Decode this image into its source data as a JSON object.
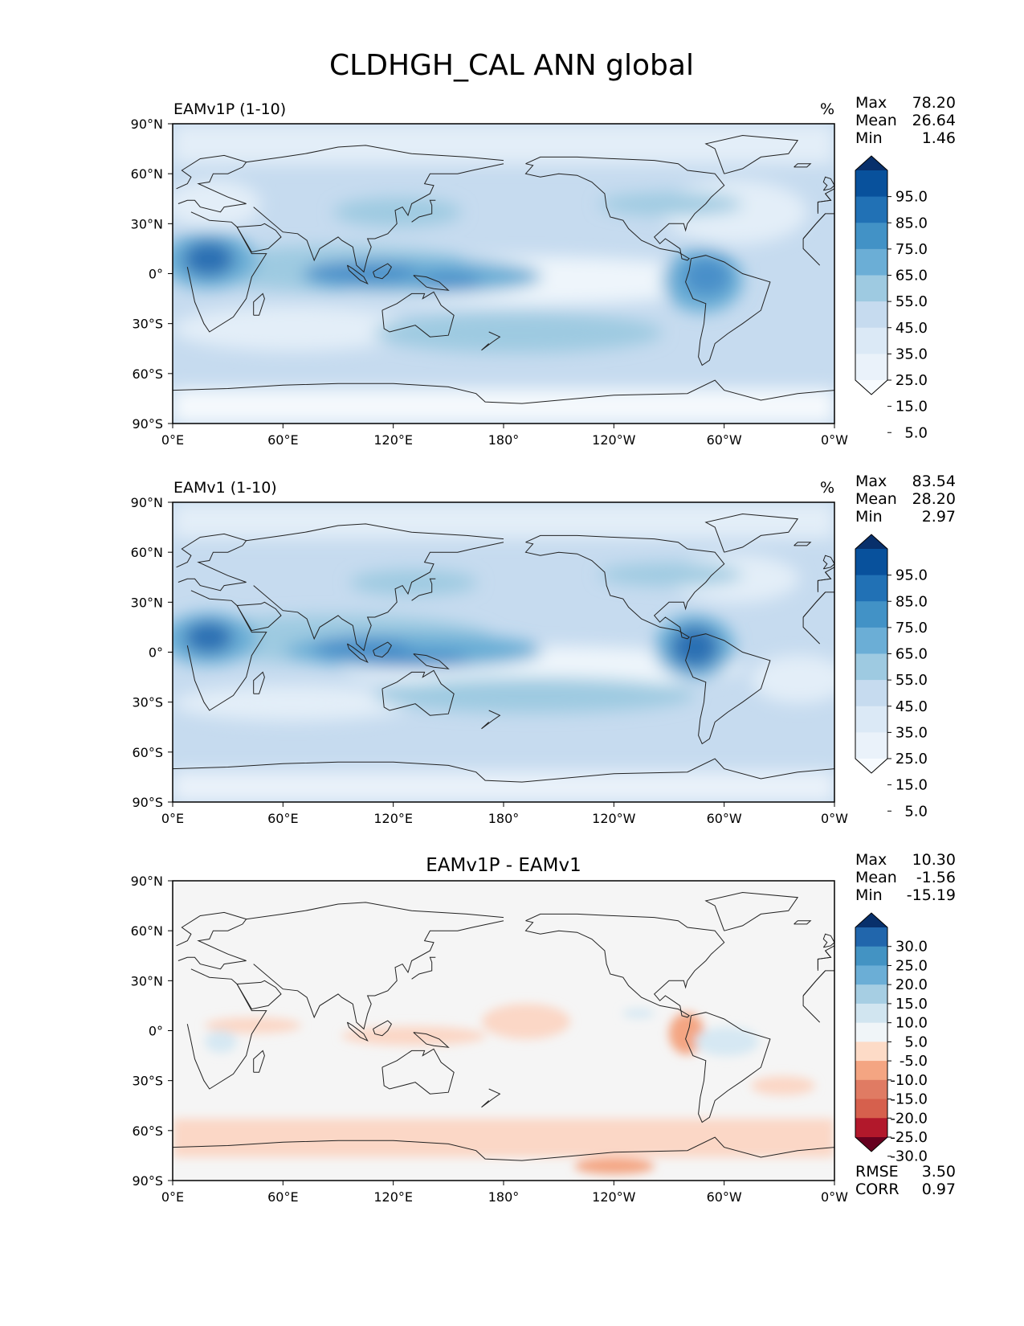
{
  "title": "CLDHGH_CAL ANN global",
  "lat_ticks": [
    "90°N",
    "60°N",
    "30°N",
    "0°",
    "30°S",
    "60°S",
    "90°S"
  ],
  "lon_ticks": [
    "0°E",
    "60°E",
    "120°E",
    "180°",
    "120°W",
    "60°W",
    "0°W"
  ],
  "panels": [
    {
      "title_left": "EAMv1P (1-10)",
      "title_center": "",
      "units": "%",
      "stats": {
        "labels": [
          "Max",
          "Mean",
          "Min"
        ],
        "values": [
          "78.20",
          "26.64",
          "1.46"
        ]
      },
      "colorbar": {
        "levels": [
          "95.0",
          "85.0",
          "75.0",
          "65.0",
          "55.0",
          "45.0",
          "35.0",
          "25.0",
          "15.0",
          "5.0"
        ],
        "colors": [
          "#08306b",
          "#08519c",
          "#2171b5",
          "#4292c6",
          "#6baed6",
          "#9ecae1",
          "#c6dbef",
          "#dbe9f6",
          "#eaf2fa",
          "#f7fbff"
        ]
      },
      "rmse": null
    },
    {
      "title_left": "EAMv1 (1-10)",
      "title_center": "",
      "units": "%",
      "stats": {
        "labels": [
          "Max",
          "Mean",
          "Min"
        ],
        "values": [
          "83.54",
          "28.20",
          "2.97"
        ]
      },
      "colorbar": {
        "levels": [
          "95.0",
          "85.0",
          "75.0",
          "65.0",
          "55.0",
          "45.0",
          "35.0",
          "25.0",
          "15.0",
          "5.0"
        ],
        "colors": [
          "#08306b",
          "#08519c",
          "#2171b5",
          "#4292c6",
          "#6baed6",
          "#9ecae1",
          "#c6dbef",
          "#dbe9f6",
          "#eaf2fa",
          "#f7fbff"
        ]
      },
      "rmse": null
    },
    {
      "title_left": "",
      "title_center": "EAMv1P - EAMv1",
      "units": "",
      "stats": {
        "labels": [
          "Max",
          "Mean",
          "Min"
        ],
        "values": [
          "10.30",
          "-1.56",
          "-15.19"
        ]
      },
      "colorbar": {
        "levels": [
          "30.0",
          "25.0",
          "20.0",
          "15.0",
          "10.0",
          "5.0",
          "-5.0",
          "-10.0",
          "-15.0",
          "-20.0",
          "-25.0",
          "-30.0"
        ],
        "colors": [
          "#08306b",
          "#2166ac",
          "#4393c3",
          "#6baed6",
          "#a6cee3",
          "#d1e5f0",
          "#f0f5f8",
          "#fddbc7",
          "#f4a582",
          "#e07b63",
          "#d6604d",
          "#b2182b",
          "#67001f"
        ]
      },
      "rmse": {
        "labels": [
          "RMSE",
          "CORR"
        ],
        "values": [
          "3.50",
          "0.97"
        ]
      }
    }
  ],
  "colors": {
    "field_base": "#c6dbef",
    "field_light": "#e3eef8",
    "field_mid": "#9ecae1",
    "field_dark": "#4a8fc9",
    "field_darkest": "#2c6fb3",
    "diff_base": "#f5f5f5",
    "diff_red": "#fbd7c6",
    "diff_blue": "#d6e8f3",
    "coast": "#222222"
  }
}
